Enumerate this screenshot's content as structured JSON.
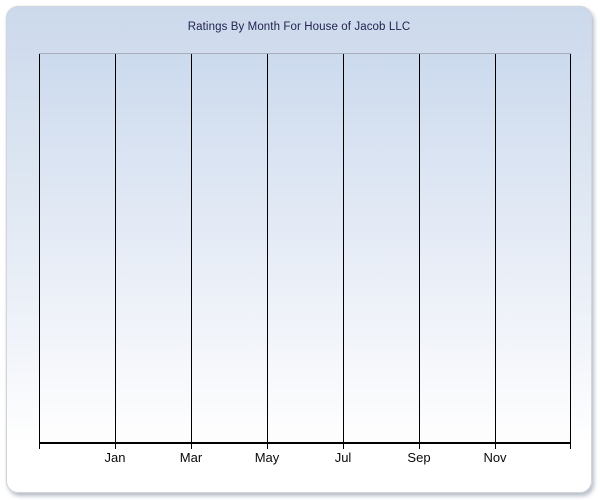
{
  "chart_data": {
    "type": "bar",
    "title": "Ratings By Month For House of Jacob LLC",
    "categories": [
      "Jan",
      "Mar",
      "May",
      "Jul",
      "Sep",
      "Nov"
    ],
    "series": [],
    "values": [],
    "xlabel": "",
    "ylabel": "",
    "legend": "none",
    "y_tick_labels": [],
    "layout_hints": {
      "grid": "vertical gridlines only (8 lines, one per 2-month interval)",
      "x_tick_labels_centered_on_gridlines": true,
      "plot_empty": "no data points rendered in plot area",
      "window_style": "rounded rectangle with drop shadow, blue-to-white vertical gradient"
    }
  },
  "colors": {
    "background_top": "#ccd9ec",
    "background_bottom": "#ffffff",
    "plot_top": "#ccdaee",
    "plot_bottom": "#fdfdfe",
    "plot_top_border": "#a9aeb8",
    "gridline": "#000000",
    "axis_line": "#000000",
    "tick_label": "#0a0a0a",
    "title": "#23234f",
    "window_border": "#d2d6dc",
    "shadow": "#b6bcc8"
  }
}
